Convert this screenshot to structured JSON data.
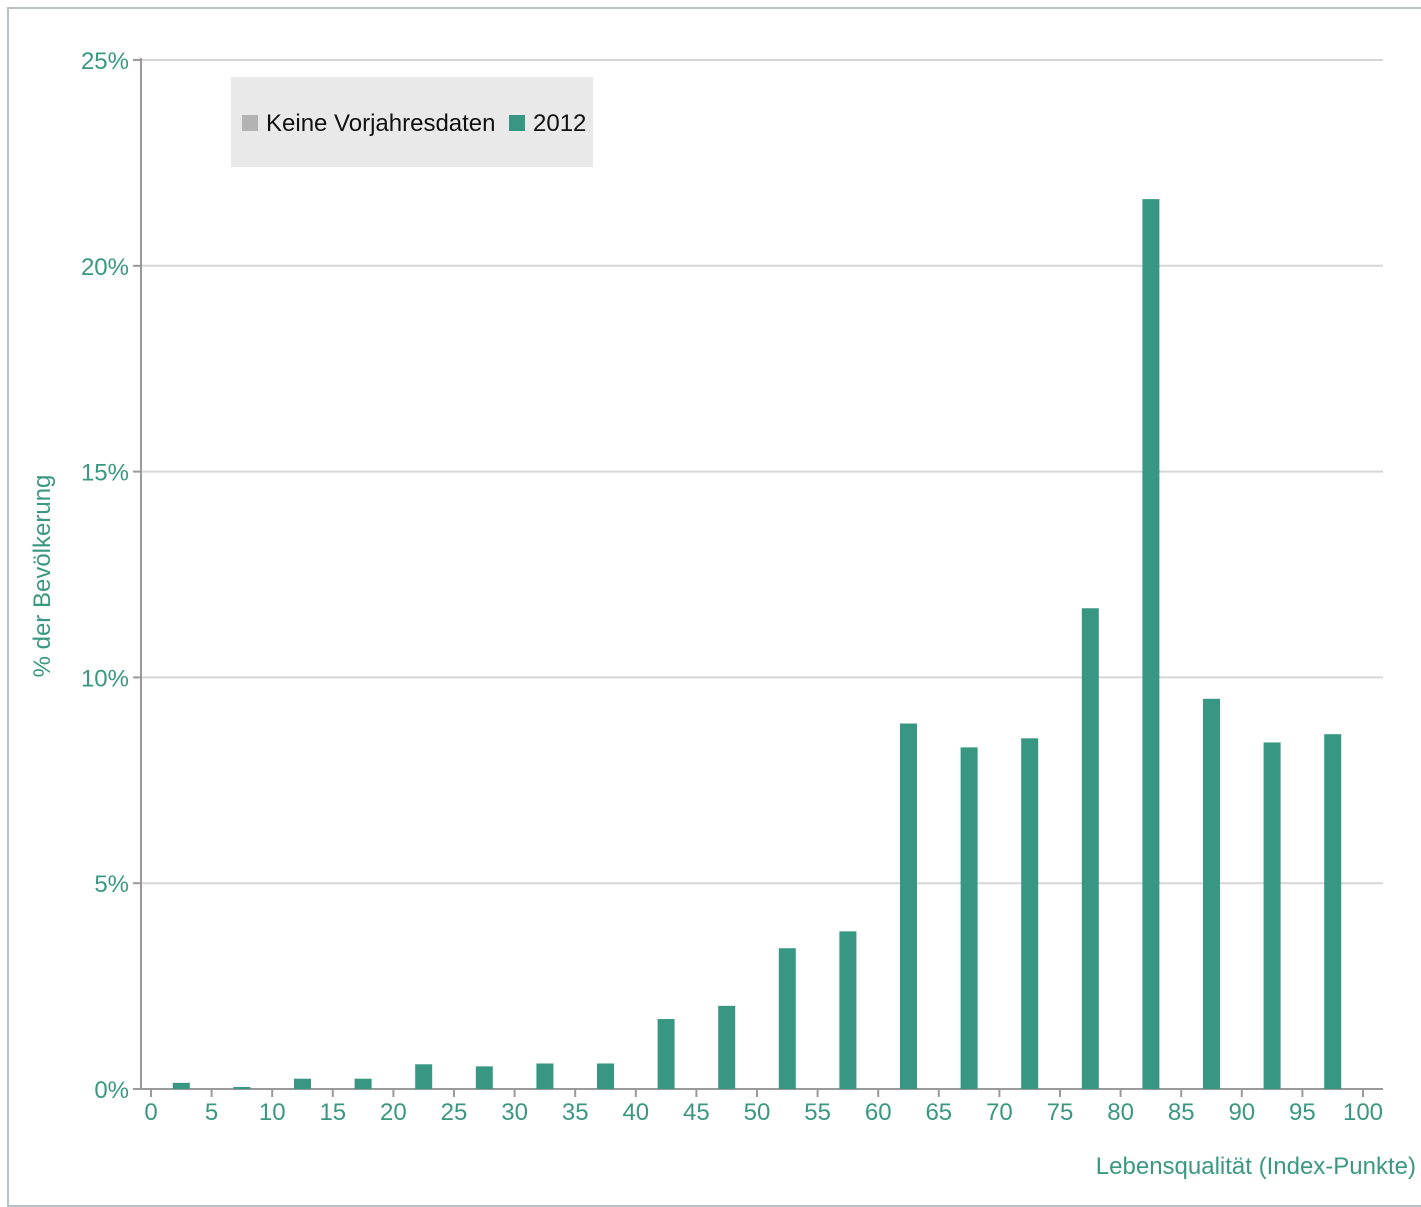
{
  "chart_data": {
    "type": "bar",
    "xlabel": "Lebensqualität (Index-Punkte)",
    "ylabel": "% der Bevölkerung",
    "ylim": [
      0,
      25
    ],
    "y_ticks": [
      {
        "value": 0,
        "label": "0%"
      },
      {
        "value": 5,
        "label": "5%"
      },
      {
        "value": 10,
        "label": "10%"
      },
      {
        "value": 15,
        "label": "15%"
      },
      {
        "value": 20,
        "label": "20%"
      },
      {
        "value": 25,
        "label": "25%"
      }
    ],
    "x_ticks": [
      "0",
      "5",
      "10",
      "15",
      "20",
      "25",
      "30",
      "35",
      "40",
      "45",
      "50",
      "55",
      "60",
      "65",
      "70",
      "75",
      "80",
      "85",
      "90",
      "95",
      "100"
    ],
    "legend": {
      "placement": "top-left",
      "entries": [
        {
          "label": "Keine Vorjahresdaten",
          "color": "#b3b3b3"
        },
        {
          "label": "2012",
          "color": "#389783"
        }
      ]
    },
    "grid": true,
    "series": [
      {
        "name": "2012",
        "color": "#389783",
        "bins": [
          "0-5",
          "5-10",
          "10-15",
          "15-20",
          "20-25",
          "25-30",
          "30-35",
          "35-40",
          "40-45",
          "45-50",
          "50-55",
          "55-60",
          "60-65",
          "65-70",
          "70-75",
          "75-80",
          "80-85",
          "85-90",
          "90-95",
          "95-100"
        ],
        "values": [
          0.15,
          0.05,
          0.25,
          0.25,
          0.6,
          0.55,
          0.62,
          0.62,
          1.7,
          2.02,
          3.42,
          3.83,
          8.88,
          8.3,
          8.52,
          11.68,
          21.62,
          9.48,
          8.42,
          8.62
        ]
      }
    ]
  }
}
